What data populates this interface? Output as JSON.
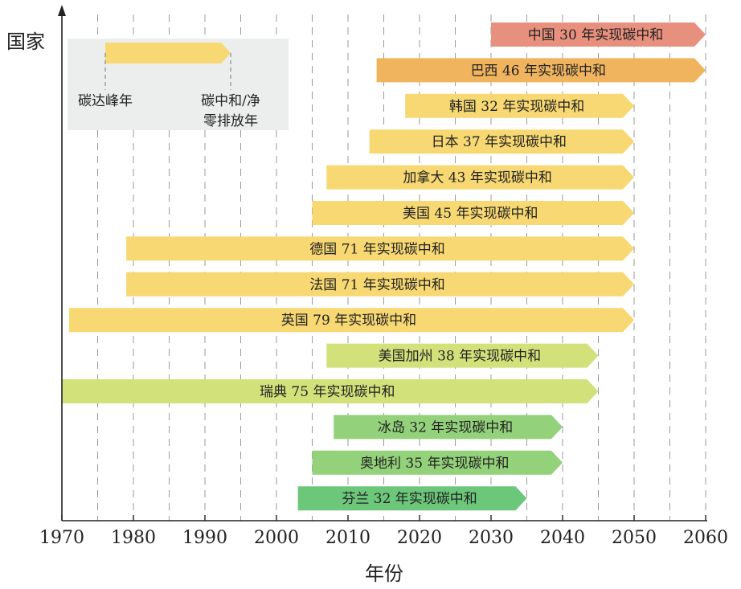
{
  "chart_data": {
    "type": "bar",
    "orientation": "horizontal-timeline",
    "xlabel": "年份",
    "ylabel": "国家",
    "xlim": [
      1970,
      2060
    ],
    "x_ticks": [
      1970,
      1980,
      1990,
      2000,
      2010,
      2020,
      2030,
      2040,
      2050,
      2060
    ],
    "grid": true,
    "bars": [
      {
        "label": "中国 30 年实现碳中和",
        "start": 2030,
        "end": 2060,
        "color": "#e8907e"
      },
      {
        "label": "巴西 46 年实现碳中和",
        "start": 2014,
        "end": 2060,
        "color": "#f0b45e"
      },
      {
        "label": "韩国 32 年实现碳中和",
        "start": 2018,
        "end": 2050,
        "color": "#f7d872"
      },
      {
        "label": "日本 37 年实现碳中和",
        "start": 2013,
        "end": 2050,
        "color": "#f7d872"
      },
      {
        "label": "加拿大 43 年实现碳中和",
        "start": 2007,
        "end": 2050,
        "color": "#f7d872"
      },
      {
        "label": "美国 45 年实现碳中和",
        "start": 2005,
        "end": 2050,
        "color": "#f7d872"
      },
      {
        "label": "德国 71 年实现碳中和",
        "start": 1979,
        "end": 2050,
        "color": "#f7d872"
      },
      {
        "label": "法国 71 年实现碳中和",
        "start": 1979,
        "end": 2050,
        "color": "#f7d872"
      },
      {
        "label": "英国 79 年实现碳中和",
        "start": 1971,
        "end": 2050,
        "color": "#f7d872"
      },
      {
        "label": "美国加州 38 年实现碳中和",
        "start": 2007,
        "end": 2045,
        "color": "#d3e17a"
      },
      {
        "label": "瑞典 75 年实现碳中和",
        "start": 1970,
        "end": 2045,
        "color": "#d3e17a"
      },
      {
        "label": "冰岛 32 年实现碳中和",
        "start": 2008,
        "end": 2040,
        "color": "#93d27a"
      },
      {
        "label": "奥地利 35 年实现碳中和",
        "start": 2005,
        "end": 2040,
        "color": "#93d27a"
      },
      {
        "label": "芬兰 32 年实现碳中和",
        "start": 2003,
        "end": 2035,
        "color": "#6cc77a"
      }
    ],
    "legend": {
      "placement": "top-left",
      "start_label": "碳达峰年",
      "end_label_line1": "碳中和/净",
      "end_label_line2": "零排放年",
      "color": "#f7d872",
      "background": "#eceded"
    }
  }
}
